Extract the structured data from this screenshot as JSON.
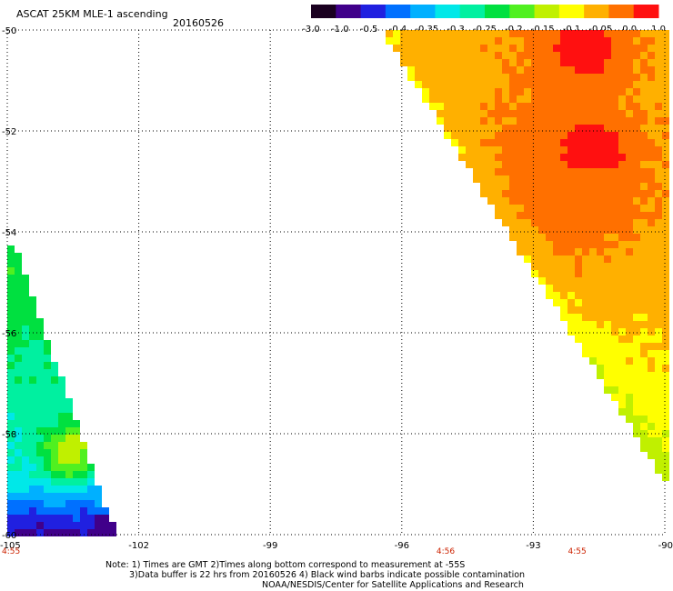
{
  "header": {
    "title": "ASCAT 25KM MLE-1 ascending",
    "date": "20160526"
  },
  "colorbar": {
    "labels": [
      "-3.0",
      "-1.0",
      "-0.5",
      "-0.4",
      "-0.35",
      "-0.3",
      "-0.25",
      "-0.2",
      "-0.15",
      "-0.1",
      "-0.05",
      "0.0",
      "1.0"
    ],
    "colors": [
      "#1a0020",
      "#40008a",
      "#2020e0",
      "#0070ff",
      "#00b0ff",
      "#00e8e8",
      "#00f0a0",
      "#00e040",
      "#50f020",
      "#c0f000",
      "#ffff00",
      "#ffb000",
      "#ff7000",
      "#ff1010"
    ]
  },
  "map": {
    "lon_ticks": [
      "-105",
      "-102",
      "-99",
      "-96",
      "-93",
      "-90"
    ],
    "lat_ticks": [
      "-50",
      "-52",
      "-54",
      "-56",
      "-58",
      "-60"
    ],
    "lon_range": [
      -105,
      -90
    ],
    "lat_range": [
      -60,
      -50
    ],
    "grid": true,
    "time_labels": [
      {
        "text": "4:55",
        "lon": -105
      },
      {
        "text": "4:56",
        "lon": -95
      },
      {
        "text": "4:55",
        "lon": -92
      }
    ],
    "time_color": "#cc2200"
  },
  "notes": {
    "line1": "Note: 1) Times are GMT 2)Times along bottom correspond to measurement at -55S",
    "line2": "3)Data buffer is 22 hrs from 20160526 4) Black wind barbs indicate possible contamination",
    "line3": "NOAA/NESDIS/Center for Satellite Applications and Research"
  }
}
